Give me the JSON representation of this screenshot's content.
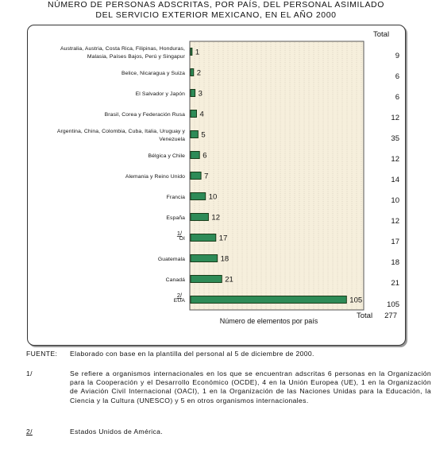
{
  "title": {
    "line1": "NÚMERO DE PERSONAS ADSCRITAS, POR PAÍS, DEL PERSONAL ASIMILADO",
    "line2": "DEL SERVICIO EXTERIOR MEXICANO, EN EL AÑO 2000"
  },
  "chart_data": {
    "type": "bar",
    "orientation": "horizontal",
    "categories": [
      [
        "Australia, Austria, Costa Rica, Filipinas, Honduras,",
        "Malasia, Países Bajos, Perú y Singapur"
      ],
      [
        "Belice, Nicaragua y Suiza"
      ],
      [
        "El Salvador y Japón"
      ],
      [
        "Brasil, Corea y Federación Rusa"
      ],
      [
        "Argentina, China, Colombia, Cuba, Italia, Uruguay y",
        "Venezuela"
      ],
      [
        "Bélgica y Chile"
      ],
      [
        "Alemania y Reino Unido"
      ],
      [
        "Francia"
      ],
      [
        "España"
      ],
      [
        "OI"
      ],
      [
        "Guatemala"
      ],
      [
        "Canadá"
      ],
      [
        "EUA"
      ]
    ],
    "category_superscripts": [
      "",
      "",
      "",
      "",
      "",
      "",
      "",
      "",
      "",
      "1/",
      "",
      "",
      "2/"
    ],
    "values": [
      1,
      2,
      3,
      4,
      5,
      6,
      7,
      10,
      12,
      17,
      18,
      21,
      105
    ],
    "totals": [
      9,
      6,
      6,
      12,
      35,
      12,
      14,
      10,
      12,
      17,
      18,
      21,
      105
    ],
    "total_header": "Total",
    "total_label": "Total",
    "grand_total": 277,
    "xlabel": "Número de elementos por país",
    "xlim": [
      0,
      115
    ],
    "grid": false,
    "colors": {
      "bar": "#2e8b57",
      "bar_border": "#1a3d1a",
      "plot_background": "#f6efdc",
      "gridline": "#b8b09c"
    }
  },
  "notes": {
    "source_label": "FUENTE:",
    "source_text": "Elaborado con base en la plantilla del personal al 5 de diciembre de 2000.",
    "note1_label": "1/",
    "note1_text": "Se refiere a organismos internacionales en los que se encuentran adscritas 6 personas en la Organización para la Cooperación y el Desarrollo Económico (OCDE), 4 en la Unión Europea (UE), 1 en la Organización de Aviación Civil Internacional (OACI), 1 en la Organización de las Naciones Unidas para la Educación, la Ciencia y la Cultura (UNESCO) y 5 en otros organismos internacionales.",
    "note2_label": "2/",
    "note2_text": "Estados Unidos de América."
  }
}
